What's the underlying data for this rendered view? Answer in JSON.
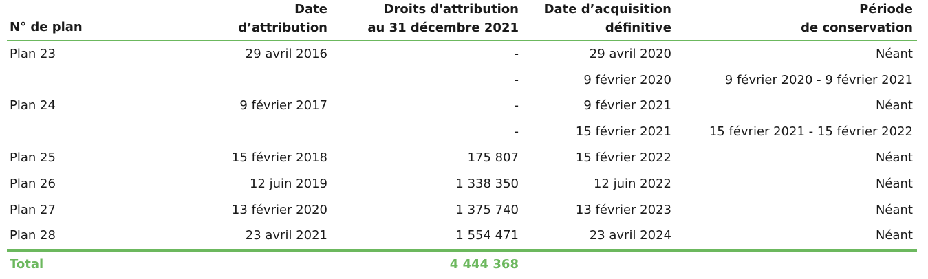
{
  "headers": {
    "plan": "N° de plan",
    "date_attribution": [
      "Date",
      "d’attribution"
    ],
    "droits": [
      "Droits d'attribution",
      "au 31 décembre 2021"
    ],
    "date_acquisition": [
      "Date d’acquisition",
      "définitive"
    ],
    "periode": [
      "Période",
      "de conservation"
    ]
  },
  "rows": [
    {
      "plan": "Plan 23",
      "date_attribution": "29 avril 2016",
      "droits": "-",
      "date_acquisition": "29 avril 2020",
      "periode": "Néant"
    },
    {
      "plan": "",
      "date_attribution": "",
      "droits": "-",
      "date_acquisition": "9 février 2020",
      "periode": "9 février 2020 - 9 février 2021"
    },
    {
      "plan": "Plan 24",
      "date_attribution": "9 février 2017",
      "droits": "-",
      "date_acquisition": "9 février 2021",
      "periode": "Néant"
    },
    {
      "plan": "",
      "date_attribution": "",
      "droits": "-",
      "date_acquisition": "15 février 2021",
      "periode": "15 février 2021 - 15 février 2022"
    },
    {
      "plan": "Plan 25",
      "date_attribution": "15 février 2018",
      "droits": "175 807",
      "date_acquisition": "15 février 2022",
      "periode": "Néant"
    },
    {
      "plan": "Plan 26",
      "date_attribution": "12 juin 2019",
      "droits": "1 338 350",
      "date_acquisition": "12 juin 2022",
      "periode": "Néant"
    },
    {
      "plan": "Plan 27",
      "date_attribution": "13 février 2020",
      "droits": "1 375 740",
      "date_acquisition": "13 février 2023",
      "periode": "Néant"
    },
    {
      "plan": "Plan 28",
      "date_attribution": "23 avril 2021",
      "droits": "1 554 471",
      "date_acquisition": "23 avril 2024",
      "periode": "Néant"
    }
  ],
  "total": {
    "label": "Total",
    "droits": "4 444 368"
  },
  "colors": {
    "accent": "#6cb85e",
    "text": "#1a1a1a"
  }
}
